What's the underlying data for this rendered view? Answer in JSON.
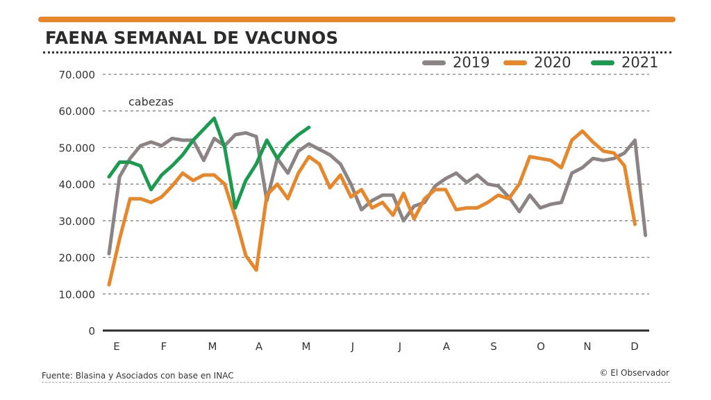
{
  "header": {
    "title": "FAENA SEMANAL DE VACUNOS",
    "accent_color": "#e8862a"
  },
  "footer": {
    "source": "Fuente: Blasina y Asociados con base en INAC",
    "credit": "© El Observador"
  },
  "chart_data": {
    "type": "line",
    "title": "FAENA SEMANAL DE VACUNOS",
    "ylabel": "cabezas",
    "xlabel": "",
    "ylim": [
      0,
      70000
    ],
    "yticks": [
      0,
      10000,
      20000,
      30000,
      40000,
      50000,
      60000,
      70000
    ],
    "ytick_labels": [
      "0",
      "10.000",
      "20.000",
      "30.000",
      "40.000",
      "50.000",
      "60.000",
      "70.000"
    ],
    "x_unit": "week",
    "xticks": [
      "E",
      "F",
      "M",
      "A",
      "M",
      "J",
      "J",
      "A",
      "S",
      "O",
      "N",
      "D"
    ],
    "grid": true,
    "legend_position": "top-right",
    "series": [
      {
        "name": "2019",
        "color": "#8c8484",
        "values": [
          21000,
          42000,
          47000,
          50500,
          51500,
          50500,
          52500,
          52000,
          52000,
          46500,
          52500,
          50500,
          53500,
          54000,
          53000,
          35500,
          47000,
          43000,
          49000,
          51000,
          49500,
          48000,
          45500,
          40000,
          33000,
          35500,
          37000,
          37000,
          30000,
          34000,
          35000,
          39500,
          41500,
          43000,
          40500,
          42500,
          40000,
          39500,
          36500,
          32500,
          37000,
          33500,
          34500,
          35000,
          43000,
          44500,
          47000,
          46500,
          47000,
          48500,
          52000,
          26000
        ]
      },
      {
        "name": "2020",
        "color": "#e8862a",
        "values": [
          12500,
          25000,
          36000,
          36000,
          35000,
          36500,
          39500,
          43000,
          41000,
          42500,
          42500,
          40000,
          31000,
          20500,
          16500,
          37000,
          40000,
          36000,
          43000,
          47500,
          45500,
          39000,
          42500,
          36500,
          38500,
          33500,
          35000,
          31500,
          37500,
          30500,
          36000,
          38500,
          38500,
          33000,
          33500,
          33500,
          35000,
          37000,
          36000,
          40000,
          47500,
          47000,
          46500,
          44500,
          52000,
          54500,
          51500,
          49000,
          48500,
          45000,
          29000
        ]
      },
      {
        "name": "2021",
        "color": "#1a9b50",
        "values": [
          42000,
          46000,
          46000,
          45000,
          38500,
          42500,
          45000,
          48000,
          52000,
          55000,
          58000,
          50000,
          33500,
          41000,
          45500,
          52000,
          47000,
          51000,
          53500,
          55500
        ]
      }
    ]
  }
}
